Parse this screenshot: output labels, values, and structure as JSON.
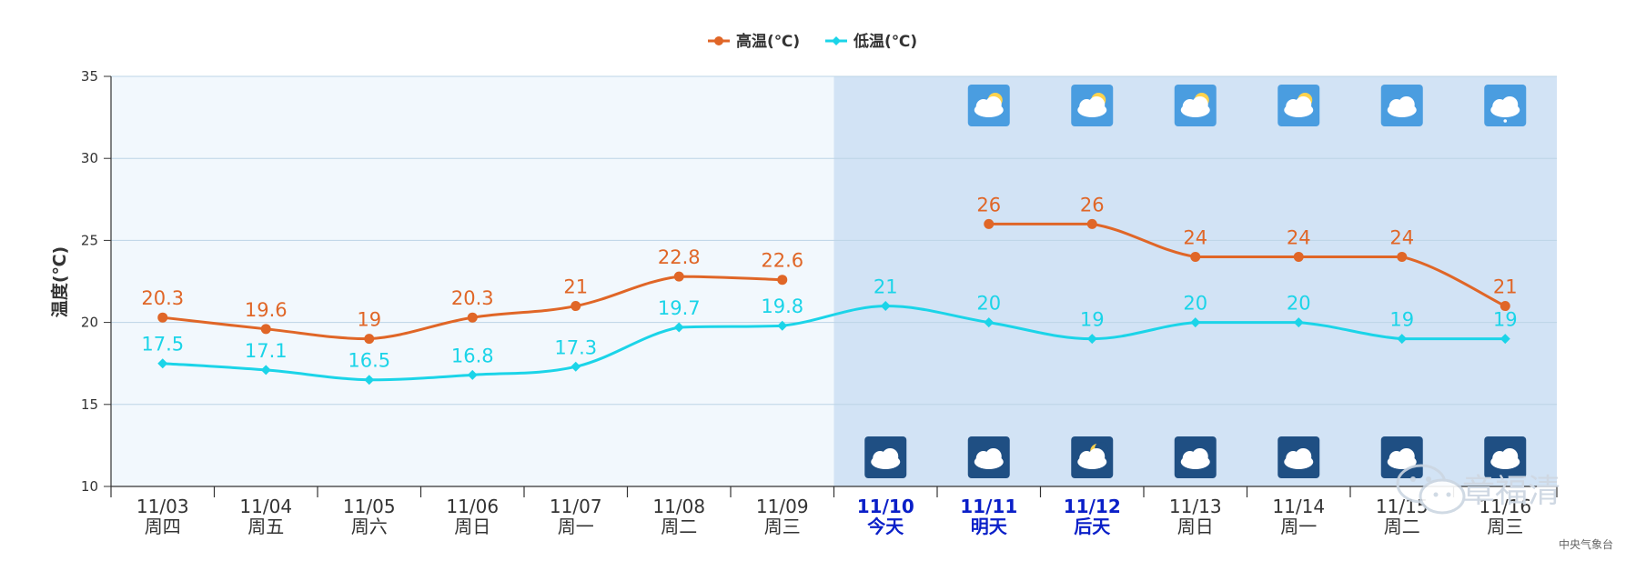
{
  "legend": {
    "high_label": "高温(℃)",
    "low_label": "低温(℃)"
  },
  "colors": {
    "high": "#e06627",
    "low": "#1bd4e8",
    "today_highlight": "#0a1fc8",
    "axis_text": "#333333",
    "past_bg": "#f2f8fd",
    "forecast_bg": "#d2e3f5"
  },
  "chart_data": {
    "type": "line",
    "title": "",
    "ylabel": "温度(℃)",
    "ylim": [
      10,
      35
    ],
    "yticks": [
      10,
      15,
      20,
      25,
      30,
      35
    ],
    "grid": true,
    "legend_position": "top-center",
    "categories": [
      {
        "date": "11/03",
        "day": "周四",
        "highlight": false
      },
      {
        "date": "11/04",
        "day": "周五",
        "highlight": false
      },
      {
        "date": "11/05",
        "day": "周六",
        "highlight": false
      },
      {
        "date": "11/06",
        "day": "周日",
        "highlight": false
      },
      {
        "date": "11/07",
        "day": "周一",
        "highlight": false
      },
      {
        "date": "11/08",
        "day": "周二",
        "highlight": false
      },
      {
        "date": "11/09",
        "day": "周三",
        "highlight": false
      },
      {
        "date": "11/10",
        "day": "今天",
        "highlight": true
      },
      {
        "date": "11/11",
        "day": "明天",
        "highlight": true
      },
      {
        "date": "11/12",
        "day": "后天",
        "highlight": true
      },
      {
        "date": "11/13",
        "day": "周日",
        "highlight": false
      },
      {
        "date": "11/14",
        "day": "周一",
        "highlight": false
      },
      {
        "date": "11/15",
        "day": "周二",
        "highlight": false
      },
      {
        "date": "11/16",
        "day": "周三",
        "highlight": false
      }
    ],
    "forecast_start_index": 7,
    "series": [
      {
        "name": "高温(℃)",
        "values": [
          20.3,
          19.6,
          19,
          20.3,
          21,
          22.8,
          22.6,
          null,
          26,
          26,
          24,
          24,
          24,
          21
        ],
        "labels": [
          "20.3",
          "19.6",
          "19",
          "20.3",
          "21",
          "22.8",
          "22.6",
          "",
          "26",
          "26",
          "24",
          "24",
          "24",
          "21"
        ],
        "marker": "circle"
      },
      {
        "name": "低温(℃)",
        "values": [
          17.5,
          17.1,
          16.5,
          16.8,
          17.3,
          19.7,
          19.8,
          21,
          20,
          19,
          20,
          20,
          19,
          19
        ],
        "labels": [
          "17.5",
          "17.1",
          "16.5",
          "16.8",
          "17.3",
          "19.7",
          "19.8",
          "21",
          "20",
          "19",
          "20",
          "20",
          "19",
          "19"
        ],
        "marker": "diamond"
      }
    ],
    "day_weather_icons": [
      null,
      null,
      null,
      null,
      null,
      null,
      null,
      null,
      "partly-cloudy-day-icon",
      "partly-cloudy-day-icon",
      "partly-cloudy-day-icon",
      "partly-cloudy-day-icon",
      "cloudy-icon",
      "light-rain-icon"
    ],
    "night_weather_icons": [
      null,
      null,
      null,
      null,
      null,
      null,
      null,
      "cloudy-night-icon",
      "cloudy-night-icon",
      "partly-cloudy-night-icon",
      "cloudy-night-icon",
      "cloudy-night-icon",
      "cloudy-night-icon",
      "cloudy-night-icon"
    ]
  },
  "watermark": {
    "text": "章福清",
    "icon": "wechat-icon"
  },
  "credit": "中央气象台"
}
